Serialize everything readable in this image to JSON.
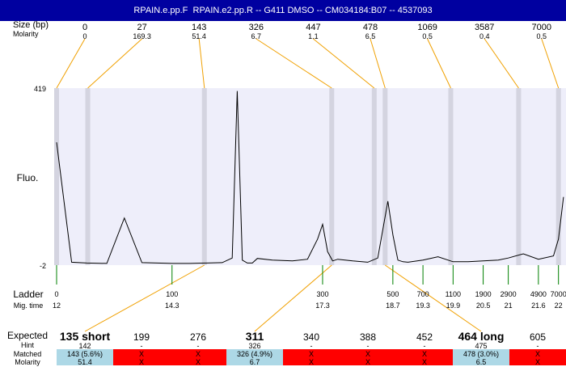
{
  "title": "RPAIN.e.pp.F  RPAIN.e2.pp.R -- G411 DMSO -- CM034184:B07 -- 4537093",
  "labels": {
    "size_row": "Size (bp)",
    "molarity_row": "Molarity",
    "fluo_axis": "Fluo.",
    "ladder_row": "Ladder",
    "migtime_row": "Mig. time",
    "expected_row": "Expected",
    "hint_row": "Hint",
    "matched_row": "Matched",
    "molarity_bottom_row": "Molarity"
  },
  "chart_data": {
    "type": "line",
    "ylabel": "Fluo.",
    "ylim": [
      -2,
      419
    ],
    "x": [
      12,
      12.3,
      12.6,
      13,
      13.35,
      13.7,
      14.0,
      14.3,
      14.65,
      15.0,
      15.3,
      15.5,
      15.6,
      15.7,
      15.8,
      15.9,
      16.0,
      16.3,
      16.7,
      17.0,
      17.2,
      17.3,
      17.4,
      17.5,
      17.6,
      17.9,
      18.2,
      18.4,
      18.6,
      18.7,
      18.8,
      18.9,
      19.0,
      19.3,
      19.6,
      19.9,
      20.2,
      20.5,
      20.8,
      21.0,
      21.3,
      21.6,
      21.9,
      22.0,
      22.1
    ],
    "y": [
      290,
      5,
      3,
      2,
      110,
      4,
      3,
      2,
      2,
      3,
      4,
      15,
      412,
      10,
      3,
      3,
      14,
      10,
      8,
      12,
      60,
      95,
      30,
      8,
      12,
      8,
      5,
      15,
      150,
      70,
      10,
      6,
      5,
      10,
      18,
      6,
      6,
      8,
      10,
      15,
      25,
      12,
      20,
      60,
      160
    ],
    "peaks": [
      {
        "size": 0,
        "molarity": 0
      },
      {
        "size": 27,
        "molarity": 169.3
      },
      {
        "size": 143,
        "molarity": 51.4
      },
      {
        "size": 326,
        "molarity": 6.7
      },
      {
        "size": 447,
        "molarity": 1.1
      },
      {
        "size": 478,
        "molarity": 6.5
      },
      {
        "size": 1069,
        "molarity": 0.5
      },
      {
        "size": 3587,
        "molarity": 0.4
      },
      {
        "size": 7000,
        "molarity": 0.5
      }
    ],
    "ladder": [
      {
        "size": "0",
        "time": "12"
      },
      {
        "size": "100",
        "time": "14.3"
      },
      {
        "size": "300",
        "time": "17.3"
      },
      {
        "size": "500",
        "time": "18.7"
      },
      {
        "size": "700",
        "time": "19.3"
      },
      {
        "size": "1100",
        "time": "19.9"
      },
      {
        "size": "1900",
        "time": "20.5"
      },
      {
        "size": "2900",
        "time": "21"
      },
      {
        "size": "4900",
        "time": "21.6"
      },
      {
        "size": "7000",
        "time": "22"
      }
    ],
    "expected": [
      {
        "label": "135 short",
        "bold": true,
        "hint": "142",
        "matched": "143 (5.6%)",
        "molarity": "51.4",
        "status": "match"
      },
      {
        "label": "199",
        "bold": false,
        "hint": "-",
        "matched": "X",
        "molarity": "X",
        "status": "nomatch"
      },
      {
        "label": "276",
        "bold": false,
        "hint": "-",
        "matched": "X",
        "molarity": "X",
        "status": "nomatch"
      },
      {
        "label": "311",
        "bold": true,
        "hint": "326",
        "matched": "326 (4.9%)",
        "molarity": "6.7",
        "status": "match"
      },
      {
        "label": "340",
        "bold": false,
        "hint": "-",
        "matched": "X",
        "molarity": "X",
        "status": "nomatch"
      },
      {
        "label": "388",
        "bold": false,
        "hint": "-",
        "matched": "X",
        "molarity": "X",
        "status": "nomatch"
      },
      {
        "label": "452",
        "bold": false,
        "hint": "-",
        "matched": "X",
        "molarity": "X",
        "status": "nomatch"
      },
      {
        "label": "464 long",
        "bold": true,
        "hint": "475",
        "matched": "478 (3.0%)",
        "molarity": "6.5",
        "status": "match"
      },
      {
        "label": "605",
        "bold": false,
        "hint": "-",
        "matched": "X",
        "molarity": "X",
        "status": "nomatch"
      }
    ]
  },
  "colors": {
    "plot_bg": "#eeeefa",
    "band": "#d4d4e0",
    "guide_line": "#f0a000",
    "ladder_tick": "#008000",
    "match_cell": "#add8e6",
    "nomatch_cell": "#ff0000"
  }
}
